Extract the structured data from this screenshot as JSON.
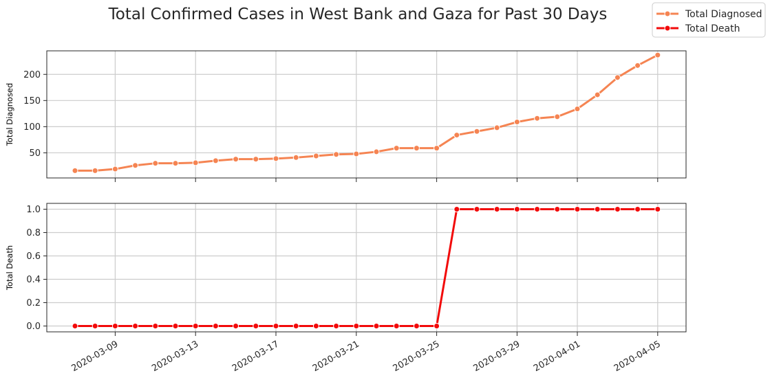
{
  "chart_data": {
    "type": "line",
    "title": "Total Confirmed Cases in West Bank and Gaza for Past 30 Days",
    "x": [
      "2020-03-07",
      "2020-03-08",
      "2020-03-09",
      "2020-03-10",
      "2020-03-11",
      "2020-03-12",
      "2020-03-13",
      "2020-03-14",
      "2020-03-15",
      "2020-03-16",
      "2020-03-17",
      "2020-03-18",
      "2020-03-19",
      "2020-03-20",
      "2020-03-21",
      "2020-03-22",
      "2020-03-23",
      "2020-03-24",
      "2020-03-25",
      "2020-03-26",
      "2020-03-27",
      "2020-03-28",
      "2020-03-29",
      "2020-03-30",
      "2020-03-31",
      "2020-04-01",
      "2020-04-02",
      "2020-04-03",
      "2020-04-04",
      "2020-04-05"
    ],
    "x_tick_labels": [
      "2020-03-09",
      "2020-03-13",
      "2020-03-17",
      "2020-03-21",
      "2020-03-25",
      "2020-03-29",
      "2020-04-01",
      "2020-04-05"
    ],
    "legend": {
      "placement": "top-right",
      "entries": [
        "Total Diagnosed",
        "Total Death"
      ]
    },
    "grid": true,
    "panels": [
      {
        "ylabel": "Total Diagnosed",
        "series": [
          {
            "name": "Total Diagnosed",
            "color": "#f58452",
            "values": [
              16,
              16,
              19,
              26,
              30,
              30,
              31,
              35,
              38,
              38,
              39,
              41,
              44,
              47,
              48,
              52,
              59,
              59,
              59,
              84,
              91,
              98,
              109,
              116,
              119,
              134,
              161,
              194,
              217,
              237
            ]
          }
        ],
        "ylim": [
          2,
          245
        ],
        "yticks": [
          50,
          100,
          150,
          200
        ],
        "ytick_labels": [
          "50",
          "100",
          "150",
          "200"
        ]
      },
      {
        "ylabel": "Total Death",
        "series": [
          {
            "name": "Total Death",
            "color": "#f20a0a",
            "values": [
              0,
              0,
              0,
              0,
              0,
              0,
              0,
              0,
              0,
              0,
              0,
              0,
              0,
              0,
              0,
              0,
              0,
              0,
              0,
              1,
              1,
              1,
              1,
              1,
              1,
              1,
              1,
              1,
              1,
              1
            ]
          }
        ],
        "ylim": [
          -0.05,
          1.05
        ],
        "yticks": [
          0,
          0.2,
          0.4,
          0.6,
          0.8,
          1.0
        ],
        "ytick_labels": [
          "0.0",
          "0.2",
          "0.4",
          "0.6",
          "0.8",
          "1.0"
        ]
      }
    ]
  }
}
